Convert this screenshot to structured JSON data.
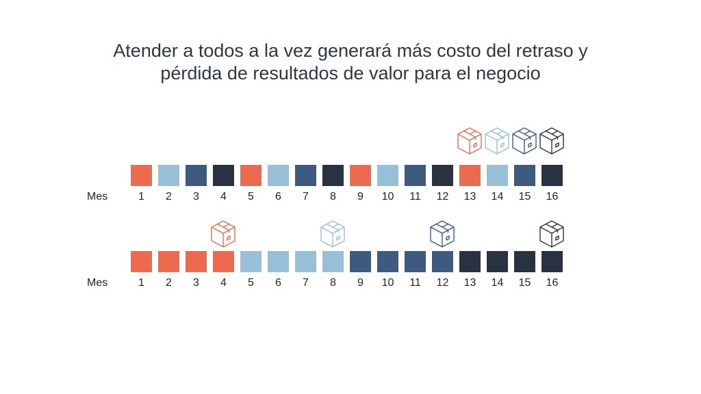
{
  "title": {
    "line1": "Atender a todos a la vez generará más costo del retraso y",
    "line2": "pérdida de resultados de valor para el negocio"
  },
  "colors": {
    "orange": "#ee6a4e",
    "light_blue": "#97bfd8",
    "blue": "#3d5a80",
    "dark": "#293241"
  },
  "rows": [
    {
      "axis_label": "Mes",
      "months": [
        "1",
        "2",
        "3",
        "4",
        "5",
        "6",
        "7",
        "8",
        "9",
        "10",
        "11",
        "12",
        "13",
        "14",
        "15",
        "16"
      ],
      "square_colors": [
        "orange",
        "light_blue",
        "blue",
        "dark",
        "orange",
        "light_blue",
        "blue",
        "dark",
        "orange",
        "light_blue",
        "blue",
        "dark",
        "orange",
        "light_blue",
        "blue",
        "dark"
      ],
      "deliveries": [
        {
          "month": 13,
          "color": "orange",
          "icon": "package-box-icon"
        },
        {
          "month": 14,
          "color": "light_blue",
          "icon": "package-box-icon"
        },
        {
          "month": 15,
          "color": "blue",
          "icon": "package-box-icon"
        },
        {
          "month": 16,
          "color": "dark",
          "icon": "package-box-icon"
        }
      ]
    },
    {
      "axis_label": "Mes",
      "months": [
        "1",
        "2",
        "3",
        "4",
        "5",
        "6",
        "7",
        "8",
        "9",
        "10",
        "11",
        "12",
        "13",
        "14",
        "15",
        "16"
      ],
      "square_colors": [
        "orange",
        "orange",
        "orange",
        "orange",
        "light_blue",
        "light_blue",
        "light_blue",
        "light_blue",
        "blue",
        "blue",
        "blue",
        "blue",
        "dark",
        "dark",
        "dark",
        "dark"
      ],
      "deliveries": [
        {
          "month": 4,
          "color": "orange",
          "icon": "package-box-icon"
        },
        {
          "month": 8,
          "color": "light_blue",
          "icon": "package-box-icon"
        },
        {
          "month": 12,
          "color": "blue",
          "icon": "package-box-icon"
        },
        {
          "month": 16,
          "color": "dark",
          "icon": "package-box-icon"
        }
      ]
    }
  ]
}
